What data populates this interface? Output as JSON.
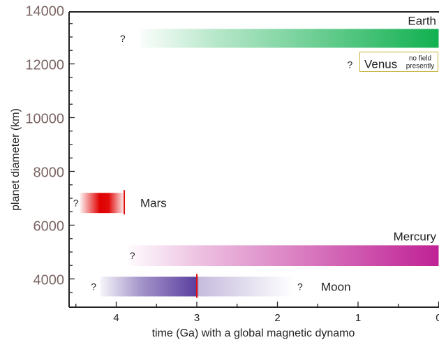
{
  "chart_data": {
    "type": "bar",
    "xlabel": "time (Ga) with a global magnetic dynamo",
    "ylabel": "planet diameter (km)",
    "xlim": [
      4.6,
      0
    ],
    "ylim": [
      3000,
      14000
    ],
    "x_ticks": [
      "4",
      "3",
      "2",
      "1",
      "0"
    ],
    "y_ticks": [
      "4000",
      "6000",
      "8000",
      "10000",
      "12000",
      "14000"
    ],
    "question_mark": "?",
    "colors": {
      "earth": "#11b050",
      "mercury": "#bf2195",
      "mars": "#e00000",
      "moon": "#5b3f9f",
      "marker": "#e01010",
      "axis_tick_label": "#7a6563",
      "venus_box_border": "#c8b13a"
    },
    "series": [
      {
        "name": "Earth",
        "x_start": 3.7,
        "x_end": 0,
        "y_low": 12600,
        "y_high": 13300,
        "color": "#11b050",
        "fade": "toward_past",
        "question_x": 3.92
      },
      {
        "name": "Mars",
        "x_start": 4.45,
        "x_end": 3.9,
        "y_low": 6450,
        "y_high": 7200,
        "color": "#e00000",
        "fade": "toward_recent",
        "marker_x": 3.9,
        "question_x": 4.5
      },
      {
        "name": "Mercury",
        "x_start": 3.85,
        "x_end": 0,
        "y_low": 4480,
        "y_high": 5250,
        "color": "#bf2195",
        "fade": "toward_past",
        "question_x": 3.8
      },
      {
        "name": "Moon",
        "x_start": 4.2,
        "x_end": 1.8,
        "y_low": 3350,
        "y_high": 4080,
        "color": "#5b3f9f",
        "fade": "both",
        "solid_from": 3.7,
        "solid_to": 3.0,
        "marker_x": 3.0,
        "question_x": 4.28,
        "question_x2": 1.72
      }
    ],
    "venus": {
      "name": "Venus",
      "note_line1": "no field",
      "note_line2": "presently",
      "y": 12000,
      "question_x": 1.1
    }
  }
}
